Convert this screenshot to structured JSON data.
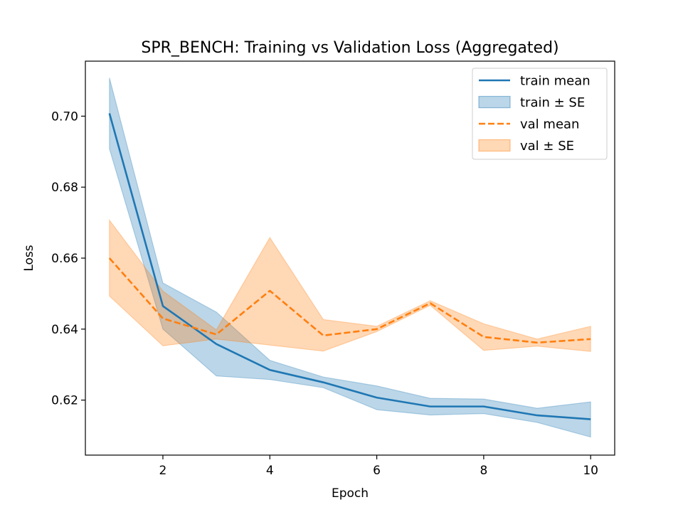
{
  "chart_data": {
    "type": "line",
    "title": "SPR_BENCH: Training vs Validation Loss (Aggregated)",
    "xlabel": "Epoch",
    "ylabel": "Loss",
    "xlim": [
      0.55,
      10.45
    ],
    "ylim": [
      0.6045,
      0.7155
    ],
    "xticks": [
      2,
      4,
      6,
      8,
      10
    ],
    "yticks": [
      0.62,
      0.64,
      0.66,
      0.68,
      0.7
    ],
    "xtick_labels": [
      "2",
      "4",
      "6",
      "8",
      "10"
    ],
    "ytick_labels": [
      "0.62",
      "0.64",
      "0.66",
      "0.68",
      "0.70"
    ],
    "grid": false,
    "legend_position": "top-right",
    "x": [
      1,
      2,
      3,
      4,
      5,
      6,
      7,
      8,
      9,
      10
    ],
    "series": [
      {
        "name": "train mean",
        "band_name": "train ± SE",
        "color": "#1f77b4",
        "line_style": "solid",
        "mean": [
          0.7008,
          0.6465,
          0.6358,
          0.6285,
          0.625,
          0.6207,
          0.6182,
          0.6182,
          0.6157,
          0.6146
        ],
        "lower": [
          0.6908,
          0.64,
          0.6268,
          0.6258,
          0.6235,
          0.6173,
          0.6158,
          0.6162,
          0.6137,
          0.6096
        ],
        "upper": [
          0.7108,
          0.653,
          0.6448,
          0.6312,
          0.6265,
          0.624,
          0.6205,
          0.6203,
          0.6177,
          0.6195
        ]
      },
      {
        "name": "val mean",
        "band_name": "val ± SE",
        "color": "#ff7f0e",
        "line_style": "dashed",
        "mean": [
          0.66,
          0.643,
          0.6385,
          0.6508,
          0.6382,
          0.64,
          0.6473,
          0.6378,
          0.6362,
          0.6372
        ],
        "lower": [
          0.6493,
          0.6353,
          0.6372,
          0.6355,
          0.6338,
          0.6393,
          0.6467,
          0.634,
          0.6352,
          0.6337
        ],
        "upper": [
          0.6707,
          0.6507,
          0.6398,
          0.6658,
          0.6427,
          0.6408,
          0.648,
          0.6415,
          0.6372,
          0.6408
        ]
      }
    ]
  }
}
